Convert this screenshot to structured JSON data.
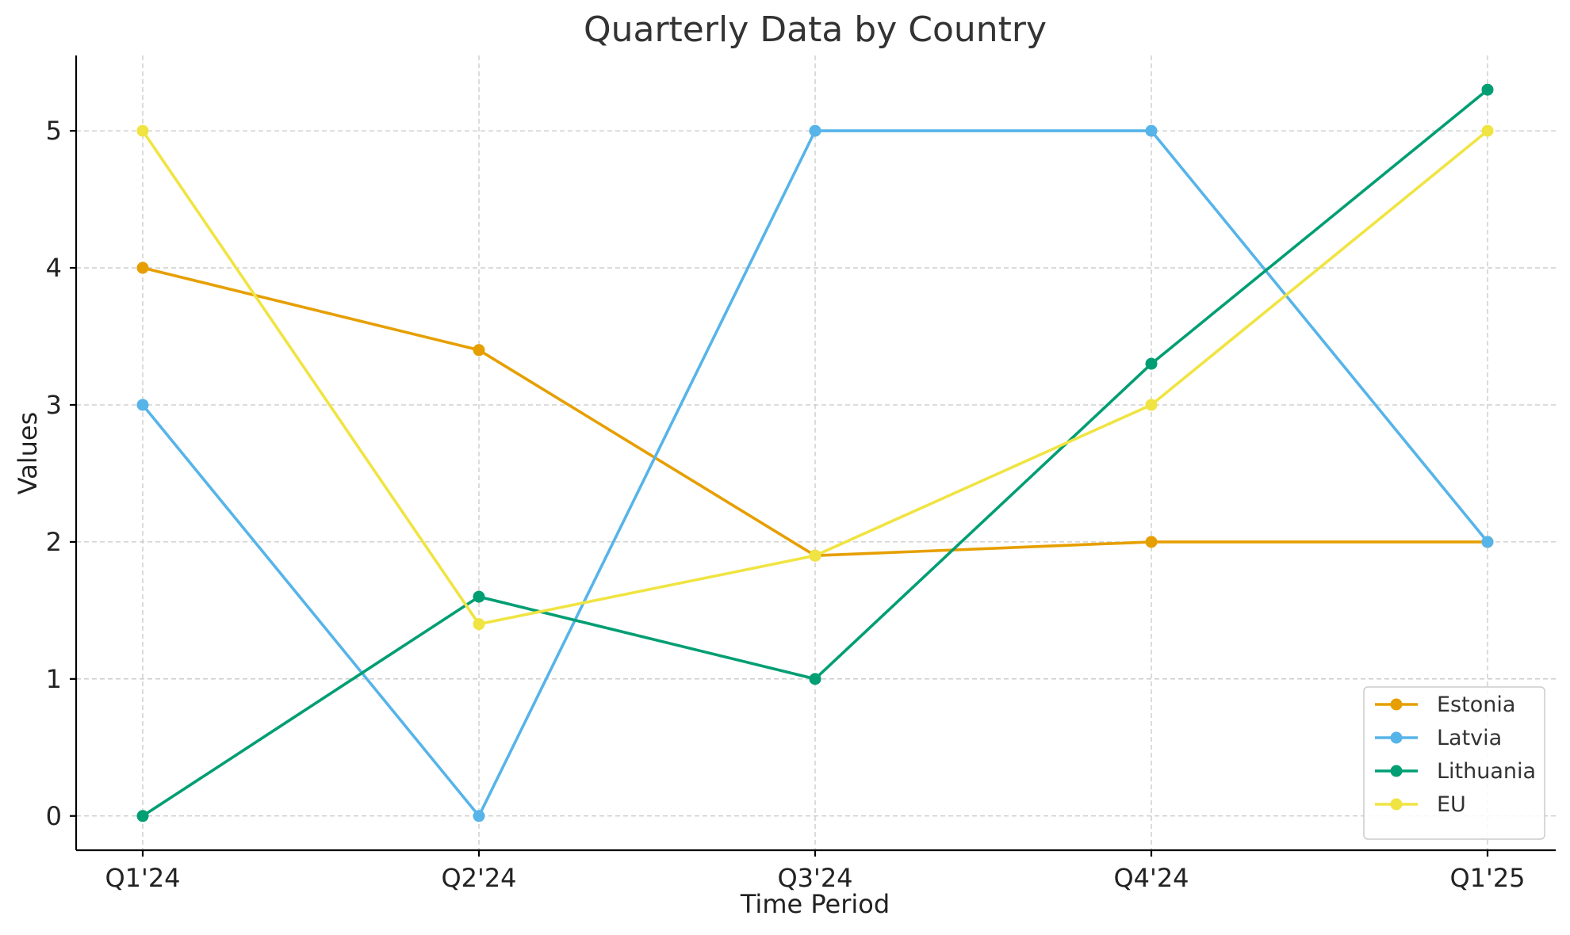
{
  "chart_data": {
    "type": "line",
    "title": "Quarterly Data by Country",
    "xlabel": "Time Period",
    "ylabel": "Values",
    "categories": [
      "Q1'24",
      "Q2'24",
      "Q3'24",
      "Q4'24",
      "Q1'25"
    ],
    "ylim": [
      -0.25,
      5.55
    ],
    "yticks": [
      0,
      1,
      2,
      3,
      4,
      5
    ],
    "grid": true,
    "legend_position": "bottom-right",
    "series": [
      {
        "name": "Estonia",
        "color": "#E69F00",
        "values": [
          4.0,
          3.4,
          1.9,
          2.0,
          2.0
        ]
      },
      {
        "name": "Latvia",
        "color": "#56B4E9",
        "values": [
          3.0,
          0.0,
          5.0,
          5.0,
          2.0
        ]
      },
      {
        "name": "Lithuania",
        "color": "#009E73",
        "values": [
          0.0,
          1.6,
          1.0,
          3.3,
          5.3
        ]
      },
      {
        "name": "EU",
        "color": "#F0E442",
        "values": [
          5.0,
          1.4,
          1.9,
          3.0,
          5.0
        ]
      }
    ]
  }
}
